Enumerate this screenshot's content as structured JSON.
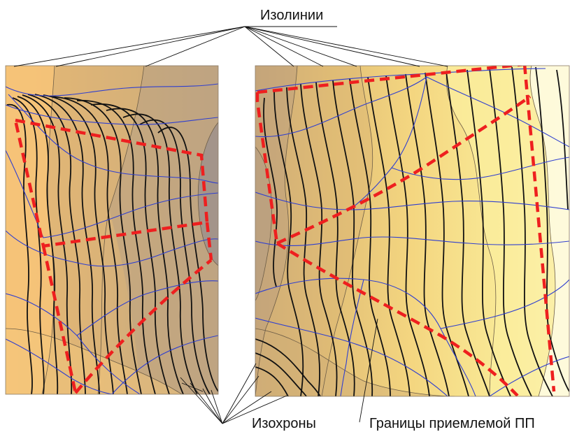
{
  "labels": {
    "isolines": "Изолинии",
    "isochrones": "Изохроны",
    "boundary": "Границы приемлемой ПП"
  },
  "colors": {
    "zone_dark": "#a6958a",
    "zone_mid": "#c4a977",
    "zone_tan": "#dcb672",
    "zone_orange": "#f4c67a",
    "zone_yellow": "#f6dc84",
    "zone_light": "#fbef9e",
    "zone_pale": "#fefbe0",
    "isoline": "#111111",
    "isochrone": "#2f3fd0",
    "boundary": "#ee1f1f"
  },
  "panels": [
    {
      "name": "left-map"
    },
    {
      "name": "right-map"
    }
  ]
}
